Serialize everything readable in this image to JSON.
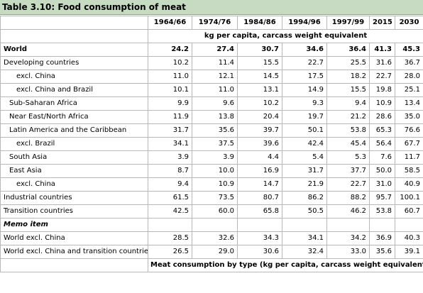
{
  "title": "Table 3.10: Food consumption of meat",
  "columns": [
    "1964/66",
    "1974/76",
    "1984/86",
    "1994/96",
    "1997/99",
    "2015",
    "2030"
  ],
  "unit_row": "kg per capita, carcass weight equivalent",
  "rows": [
    {
      "label": "World",
      "values": [
        "24.2",
        "27.4",
        "30.7",
        "34.6",
        "36.4",
        "41.3",
        "45.3"
      ]
    },
    {
      "label": "Developing countries",
      "values": [
        "10.2",
        "11.4",
        "15.5",
        "22.7",
        "25.5",
        "31.6",
        "36.7"
      ]
    },
    {
      "label": "excl. China",
      "values": [
        "11.0",
        "12.1",
        "14.5",
        "17.5",
        "18.2",
        "22.7",
        "28.0"
      ]
    },
    {
      "label": "excl. China and Brazil",
      "values": [
        "10.1",
        "11.0",
        "13.1",
        "14.9",
        "15.5",
        "19.8",
        "25.1"
      ]
    },
    {
      "label": "Sub-Saharan Africa",
      "values": [
        "9.9",
        "9.6",
        "10.2",
        "9.3",
        "9.4",
        "10.9",
        "13.4"
      ]
    },
    {
      "label": "Near East/North Africa",
      "values": [
        "11.9",
        "13.8",
        "20.4",
        "19.7",
        "21.2",
        "28.6",
        "35.0"
      ]
    },
    {
      "label": "Latin America and the Caribbean",
      "values": [
        "31.7",
        "35.6",
        "39.7",
        "50.1",
        "53.8",
        "65.3",
        "76.6"
      ]
    },
    {
      "label": "excl. Brazil",
      "values": [
        "34.1",
        "37.5",
        "39.6",
        "42.4",
        "45.4",
        "56.4",
        "67.7"
      ]
    },
    {
      "label": "South Asia",
      "values": [
        "3.9",
        "3.9",
        "4.4",
        "5.4",
        "5.3",
        "7.6",
        "11.7"
      ]
    },
    {
      "label": "East Asia",
      "values": [
        "8.7",
        "10.0",
        "16.9",
        "31.7",
        "37.7",
        "50.0",
        "58.5"
      ]
    },
    {
      "label": "excl. China",
      "values": [
        "9.4",
        "10.9",
        "14.7",
        "21.9",
        "22.7",
        "31.0",
        "40.9"
      ]
    },
    {
      "label": "Industrial countries",
      "values": [
        "61.5",
        "73.5",
        "80.7",
        "86.2",
        "88.2",
        "95.7",
        "100.1"
      ]
    },
    {
      "label": "Transition countries",
      "values": [
        "42.5",
        "60.0",
        "65.8",
        "50.5",
        "46.2",
        "53.8",
        "60.7"
      ]
    }
  ],
  "memo_label": "Memo item",
  "memo_rows": [
    {
      "label": "World excl. China",
      "values": [
        "28.5",
        "32.6",
        "34.3",
        "34.1",
        "34.2",
        "36.9",
        "40.3"
      ]
    },
    {
      "label": "World excl. China and transition countries",
      "values": [
        "26.5",
        "29.0",
        "30.6",
        "32.4",
        "33.0",
        "35.6",
        "39.1"
      ]
    }
  ],
  "footer": "Meat consumption by type (kg per capita, carcass weight equivalent)"
}
